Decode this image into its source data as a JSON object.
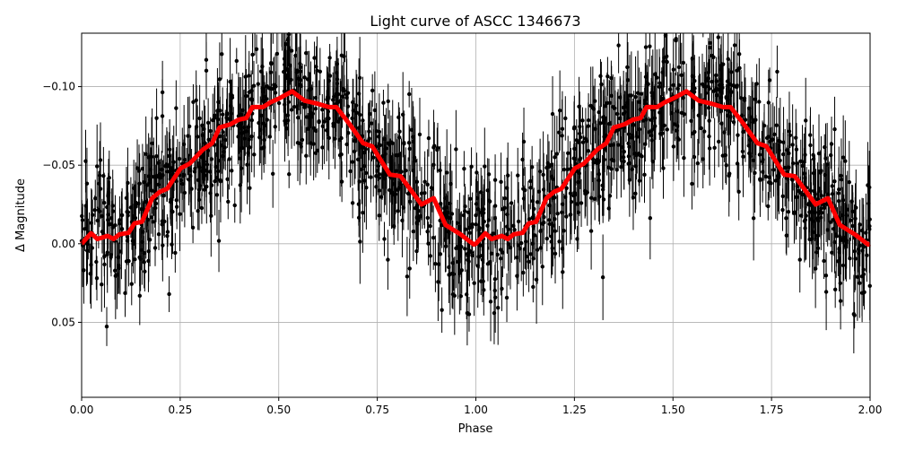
{
  "chart_data": {
    "type": "scatter",
    "title": "Light curve of ASCC 1346673",
    "xlabel": "Phase",
    "ylabel": "Δ Magnitude",
    "xlim": [
      0,
      2
    ],
    "ylim": [
      0.0977,
      -0.134
    ],
    "y_inverted": true,
    "grid": true,
    "xticks": [
      "0.00",
      "0.25",
      "0.50",
      "0.75",
      "1.00",
      "1.25",
      "1.50",
      "1.75",
      "2.00"
    ],
    "xtick_values": [
      0,
      0.25,
      0.5,
      0.75,
      1,
      1.25,
      1.5,
      1.75,
      2
    ],
    "yticks": [
      "−0.10",
      "−0.05",
      "0.00",
      "0.05"
    ],
    "ytick_values": [
      -0.1,
      -0.05,
      0.0,
      0.05
    ],
    "observations": {
      "marker": "point with vertical error bar",
      "color": "#000000",
      "spread_magnitude": 0.025
    },
    "series": [
      {
        "type": "line",
        "color": "#ff0000",
        "x": [
          0,
          0.024,
          0.04,
          0.066,
          0.081,
          0.096,
          0.119,
          0.134,
          0.153,
          0.179,
          0.198,
          0.217,
          0.251,
          0.274,
          0.308,
          0.331,
          0.35,
          0.377,
          0.399,
          0.418,
          0.433,
          0.46,
          0.479,
          0.505,
          0.534,
          0.566,
          0.6,
          0.627,
          0.646,
          0.68,
          0.714,
          0.737,
          0.782,
          0.809,
          0.862,
          0.893,
          0.923,
          0.961,
          0.995
        ],
        "y": [
          0.0,
          -0.0067,
          -0.003,
          -0.005,
          -0.003,
          -0.006,
          -0.007,
          -0.013,
          -0.014,
          -0.029,
          -0.033,
          -0.035,
          -0.048,
          -0.051,
          -0.06,
          -0.064,
          -0.074,
          -0.076,
          -0.079,
          -0.08,
          -0.087,
          -0.087,
          -0.09,
          -0.093,
          -0.097,
          -0.091,
          -0.089,
          -0.087,
          -0.087,
          -0.076,
          -0.064,
          -0.062,
          -0.044,
          -0.043,
          -0.025,
          -0.029,
          -0.012,
          -0.006,
          0.0005
        ],
        "repeats_with_period": 1
      }
    ]
  }
}
